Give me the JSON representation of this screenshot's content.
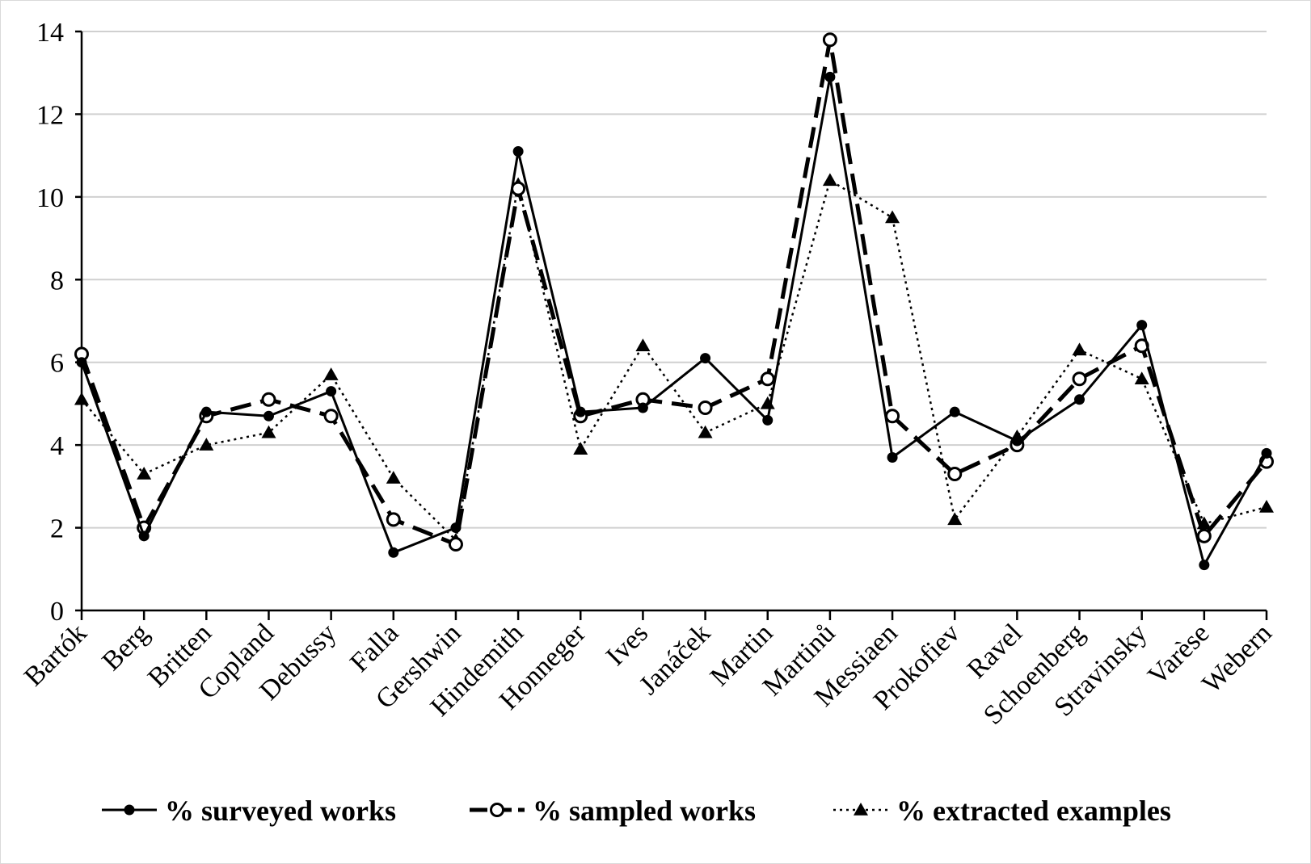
{
  "chart_data": {
    "type": "line",
    "title": "",
    "xlabel": "",
    "ylabel": "",
    "ylim": [
      0,
      14
    ],
    "yticks": [
      0,
      2,
      4,
      6,
      8,
      10,
      12,
      14
    ],
    "grid": true,
    "legend_position": "bottom",
    "categories": [
      "Bartók",
      "Berg",
      "Britten",
      "Copland",
      "Debussy",
      "Falla",
      "Gershwin",
      "Hindemith",
      "Honneger",
      "Ives",
      "Janáček",
      "Martin",
      "Martinů",
      "Messiaen",
      "Prokofiev",
      "Ravel",
      "Schoenberg",
      "Stravinsky",
      "Varèse",
      "Webern"
    ],
    "series": [
      {
        "name": "% surveyed works",
        "style": "solid-filled-circle",
        "color": "#000000",
        "values": [
          6.0,
          1.8,
          4.8,
          4.7,
          5.3,
          1.4,
          2.0,
          11.1,
          4.8,
          4.9,
          6.1,
          4.6,
          12.9,
          3.7,
          4.8,
          4.1,
          5.1,
          6.9,
          1.1,
          3.8
        ]
      },
      {
        "name": "% sampled works",
        "style": "dashed-open-circle",
        "color": "#000000",
        "values": [
          6.2,
          2.0,
          4.7,
          5.1,
          4.7,
          2.2,
          1.6,
          10.2,
          4.7,
          5.1,
          4.9,
          5.6,
          13.8,
          4.7,
          3.3,
          4.0,
          5.6,
          6.4,
          1.8,
          3.6
        ]
      },
      {
        "name": "% extracted examples",
        "style": "dotted-filled-triangle",
        "color": "#000000",
        "values": [
          5.1,
          3.3,
          4.0,
          4.3,
          5.7,
          3.2,
          1.7,
          10.3,
          3.9,
          6.4,
          4.3,
          5.0,
          10.4,
          9.5,
          2.2,
          4.2,
          6.3,
          5.6,
          2.1,
          2.5
        ]
      }
    ]
  }
}
